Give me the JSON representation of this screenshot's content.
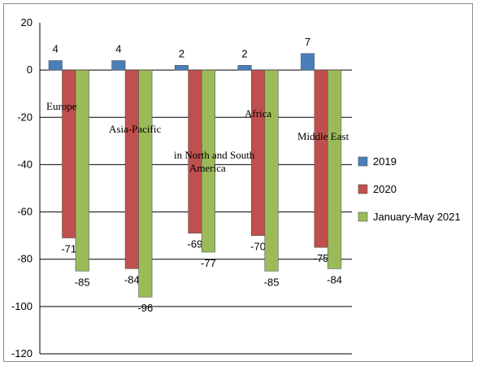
{
  "chart_data": {
    "type": "bar",
    "categories": [
      "Europe",
      "Asia-Pacific",
      "in North and South America",
      "Africa",
      "Middle East"
    ],
    "series": [
      {
        "name": "2019",
        "values": [
          4,
          4,
          2,
          2,
          7
        ],
        "color": "#4a7ebb"
      },
      {
        "name": "2020",
        "values": [
          -71,
          -84,
          -69,
          -70,
          -75
        ],
        "color": "#c0504d"
      },
      {
        "name": "January-May 2021",
        "values": [
          -85,
          -96,
          -77,
          -85,
          -84
        ],
        "color": "#9bbb59"
      }
    ],
    "ylim": [
      -120,
      20
    ],
    "yticks": [
      20,
      0,
      -20,
      -40,
      -60,
      -80,
      -100,
      -120
    ],
    "grid": true,
    "legend": "right",
    "title": "",
    "xlabel": "",
    "ylabel": ""
  }
}
